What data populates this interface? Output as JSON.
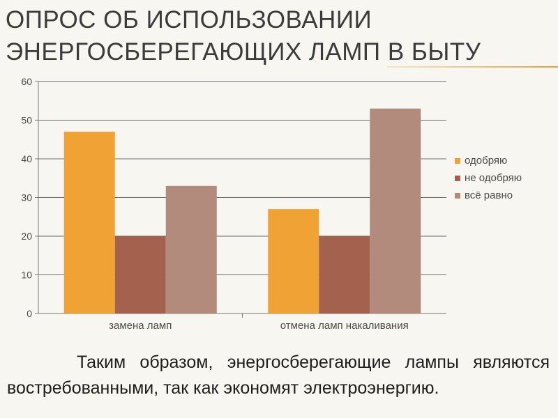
{
  "slide": {
    "title_line1": "Опрос об использовании",
    "title_line2": "энергосберегающих ламп в быту",
    "caption": "Таким образом, энергосберегающие лампы являются востребованными, так как экономят электроэнергию."
  },
  "chart_data": {
    "type": "bar",
    "title": "",
    "xlabel": "",
    "ylabel": "",
    "categories": [
      "замена ламп",
      "отмена ламп накаливания"
    ],
    "series": [
      {
        "name": "одобряю",
        "values": [
          47,
          27
        ],
        "color": "#f0a334"
      },
      {
        "name": "не одобряю",
        "values": [
          20,
          20
        ],
        "color": "#a3614e"
      },
      {
        "name": "всё равно",
        "values": [
          33,
          53
        ],
        "color": "#b28b7d"
      }
    ],
    "ylim": [
      0,
      60
    ],
    "yticks": [
      0,
      10,
      20,
      30,
      40,
      50,
      60
    ],
    "grid": true,
    "legend": "right"
  }
}
